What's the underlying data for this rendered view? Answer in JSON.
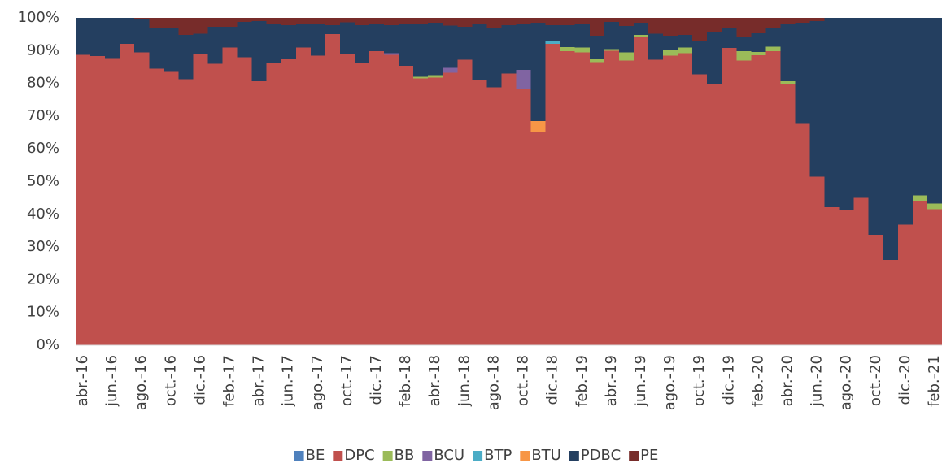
{
  "chart_data": {
    "type": "stacked_bar_100",
    "categories": [
      "abr.-16",
      null,
      "jun.-16",
      null,
      "ago.-16",
      null,
      "oct.-16",
      null,
      "dic.-16",
      null,
      "feb.-17",
      null,
      "abr.-17",
      null,
      "jun.-17",
      null,
      "ago.-17",
      null,
      "oct.-17",
      null,
      "dic.-17",
      null,
      "feb.-18",
      null,
      "abr.-18",
      null,
      "jun.-18",
      null,
      "ago.-18",
      null,
      "oct.-18",
      null,
      "dic.-18",
      null,
      "feb.-19",
      null,
      "abr.-19",
      null,
      "jun.-19",
      null,
      "ago.-19",
      null,
      "oct.-19",
      null,
      "dic.-19",
      null,
      "feb.-20",
      null,
      "abr.-20",
      null,
      "jun.-20",
      null,
      "ago.-20",
      null,
      "oct.-20",
      null,
      "dic.-20",
      null,
      "feb.-21"
    ],
    "series": [
      {
        "name": "BE",
        "color": "#4f81bd",
        "values": [
          0,
          0,
          0,
          0,
          0,
          0,
          0,
          0,
          0,
          0,
          0,
          0,
          0,
          0,
          0,
          0,
          0,
          0,
          0,
          0,
          0,
          0,
          0,
          0,
          0,
          0,
          0,
          0,
          0,
          0,
          0,
          0,
          0,
          0,
          0,
          0,
          0,
          0,
          0,
          0,
          0,
          0,
          0,
          0,
          0,
          0,
          0,
          0,
          0,
          0,
          0,
          0,
          0,
          0,
          0,
          0,
          0,
          0,
          0
        ]
      },
      {
        "name": "DPC",
        "color": "#c0504d",
        "values": [
          88.7,
          88.3,
          87.5,
          92,
          89.5,
          84.5,
          83.5,
          81.3,
          89,
          86,
          91,
          88,
          80.7,
          86.3,
          87.3,
          91,
          88.5,
          95,
          88.8,
          86.3,
          89.8,
          88.7,
          85.3,
          81.5,
          81.8,
          83.3,
          87.2,
          81,
          78.8,
          83,
          78.3,
          65.3,
          92,
          89.8,
          89.5,
          86.5,
          90,
          87,
          94.3,
          87.2,
          88.5,
          89.2,
          82.8,
          79.8,
          90.8,
          87,
          88.6,
          89.8,
          79.8,
          67.6,
          51.5,
          42.2,
          41.5,
          45,
          33.7,
          26,
          36.8,
          44,
          41.6
        ]
      },
      {
        "name": "BB",
        "color": "#9bbb59",
        "values": [
          0,
          0,
          0,
          0,
          0,
          0,
          0,
          0,
          0,
          0,
          0,
          0,
          0,
          0,
          0,
          0,
          0,
          0,
          0,
          0,
          0,
          0,
          0,
          0.5,
          0.7,
          0,
          0,
          0,
          0,
          0,
          0,
          0,
          0,
          1.3,
          1.5,
          0.8,
          0.5,
          2.5,
          0.5,
          0,
          1.7,
          1.8,
          0,
          0,
          0,
          2.8,
          1,
          1.4,
          0.8,
          0,
          0,
          0,
          0,
          0,
          0,
          0,
          0,
          1.8,
          1.7
        ]
      },
      {
        "name": "BCU",
        "color": "#8064a2",
        "values": [
          0,
          0,
          0,
          0,
          0,
          0,
          0,
          0,
          0,
          0,
          0,
          0,
          0,
          0,
          0,
          0,
          0,
          0,
          0,
          0,
          0,
          0.5,
          0,
          0,
          0,
          1.5,
          0,
          0,
          0,
          0,
          5.8,
          0,
          0,
          0,
          0,
          0,
          0,
          0,
          0,
          0,
          0,
          0,
          0,
          0,
          0,
          0,
          0,
          0,
          0,
          0,
          0,
          0,
          0,
          0,
          0,
          0,
          0,
          0,
          0
        ]
      },
      {
        "name": "BTP",
        "color": "#4bacc6",
        "values": [
          0,
          0,
          0,
          0,
          0,
          0,
          0,
          0,
          0,
          0,
          0,
          0,
          0,
          0,
          0,
          0,
          0,
          0,
          0,
          0,
          0,
          0,
          0,
          0,
          0,
          0,
          0,
          0,
          0,
          0,
          0,
          0,
          0.8,
          0,
          0,
          0,
          0,
          0,
          0,
          0,
          0,
          0,
          0,
          0,
          0,
          0,
          0,
          0,
          0,
          0,
          0,
          0,
          0,
          0,
          0,
          0,
          0,
          0,
          0
        ]
      },
      {
        "name": "BTU",
        "color": "#f79646",
        "values": [
          0,
          0,
          0,
          0,
          0,
          0,
          0,
          0,
          0,
          0,
          0,
          0,
          0,
          0,
          0,
          0,
          0,
          0,
          0,
          0,
          0,
          0,
          0,
          0,
          0,
          0,
          0,
          0,
          0,
          0,
          0,
          3.2,
          0,
          0,
          0,
          0,
          0,
          0,
          0,
          0,
          0,
          0,
          0,
          0,
          0,
          0,
          0,
          0,
          0,
          0,
          0,
          0,
          0,
          0,
          0,
          0,
          0,
          0,
          0
        ]
      },
      {
        "name": "PDBC",
        "color": "#243f60",
        "values": [
          11.3,
          11.7,
          12.5,
          8,
          10,
          12.3,
          13.5,
          13.5,
          6.2,
          11.3,
          6.3,
          10.8,
          18.3,
          12,
          10.5,
          7.2,
          9.8,
          2.8,
          9.8,
          11.5,
          8.2,
          8.6,
          12.9,
          16.2,
          16,
          12.8,
          10.1,
          17.2,
          18.2,
          14.8,
          13.9,
          30,
          5,
          6.7,
          7.3,
          7.2,
          8.3,
          8,
          3.7,
          8,
          4.3,
          3.8,
          10,
          15.8,
          6,
          4.5,
          5.7,
          5.8,
          17.4,
          30.9,
          47.5,
          57.8,
          58.5,
          55,
          66.3,
          74,
          63.2,
          54.2,
          56.7
        ]
      },
      {
        "name": "PE",
        "color": "#772c2a",
        "values": [
          0,
          0,
          0,
          0,
          0.5,
          3.2,
          3,
          5.2,
          4.8,
          2.7,
          2.7,
          1.2,
          1,
          1.7,
          2.2,
          1.8,
          1.7,
          2.2,
          1.4,
          2.2,
          2,
          2.2,
          1.8,
          1.8,
          1.5,
          2.4,
          2.7,
          1.8,
          3,
          2.2,
          2,
          1.5,
          2.2,
          2.2,
          1.7,
          5.5,
          1.2,
          2.5,
          1.5,
          4.8,
          5.5,
          5.2,
          7.2,
          4.4,
          3.2,
          5.7,
          4.7,
          3,
          2,
          1.5,
          1,
          0,
          0,
          0,
          0,
          0,
          0,
          0,
          0
        ]
      }
    ],
    "ylim": [
      0,
      100
    ],
    "yticks": [
      {
        "value": 0,
        "label": "0%"
      },
      {
        "value": 10,
        "label": "10%"
      },
      {
        "value": 20,
        "label": "20%"
      },
      {
        "value": 30,
        "label": "30%"
      },
      {
        "value": 40,
        "label": "40%"
      },
      {
        "value": 50,
        "label": "50%"
      },
      {
        "value": 60,
        "label": "60%"
      },
      {
        "value": 70,
        "label": "70%"
      },
      {
        "value": 80,
        "label": "80%"
      },
      {
        "value": 90,
        "label": "90%"
      },
      {
        "value": 100,
        "label": "100%"
      }
    ],
    "legend": "bottom"
  }
}
